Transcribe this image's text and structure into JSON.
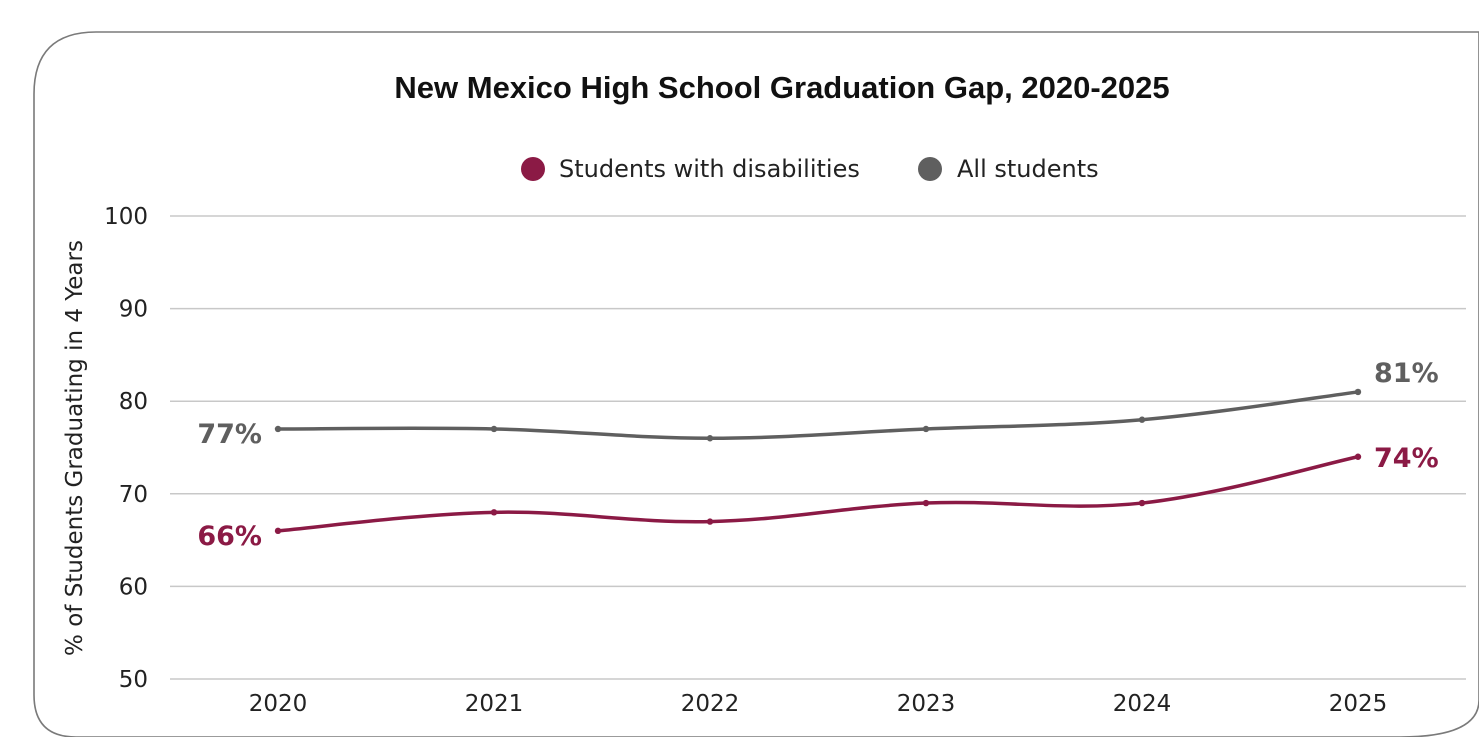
{
  "chart_data": {
    "type": "line",
    "title": "New Mexico High School Graduation Gap, 2020-2025",
    "xlabel": "",
    "ylabel": "% of Students Graduating in 4 Years",
    "categories": [
      "2020",
      "2021",
      "2022",
      "2023",
      "2024",
      "2025"
    ],
    "ylim": [
      50,
      100
    ],
    "yticks": [
      "50",
      "60",
      "70",
      "80",
      "90",
      "100"
    ],
    "grid": true,
    "legend_position": "top",
    "series": [
      {
        "name": "Students with disabilities",
        "color": "#8b1a45",
        "values": [
          66,
          68,
          67,
          69,
          69,
          74
        ],
        "start_label": "66%",
        "end_label": "74%"
      },
      {
        "name": "All students",
        "color": "#5f5f5f",
        "values": [
          77,
          77,
          76,
          77,
          78,
          81
        ],
        "start_label": "77%",
        "end_label": "81%"
      }
    ]
  }
}
